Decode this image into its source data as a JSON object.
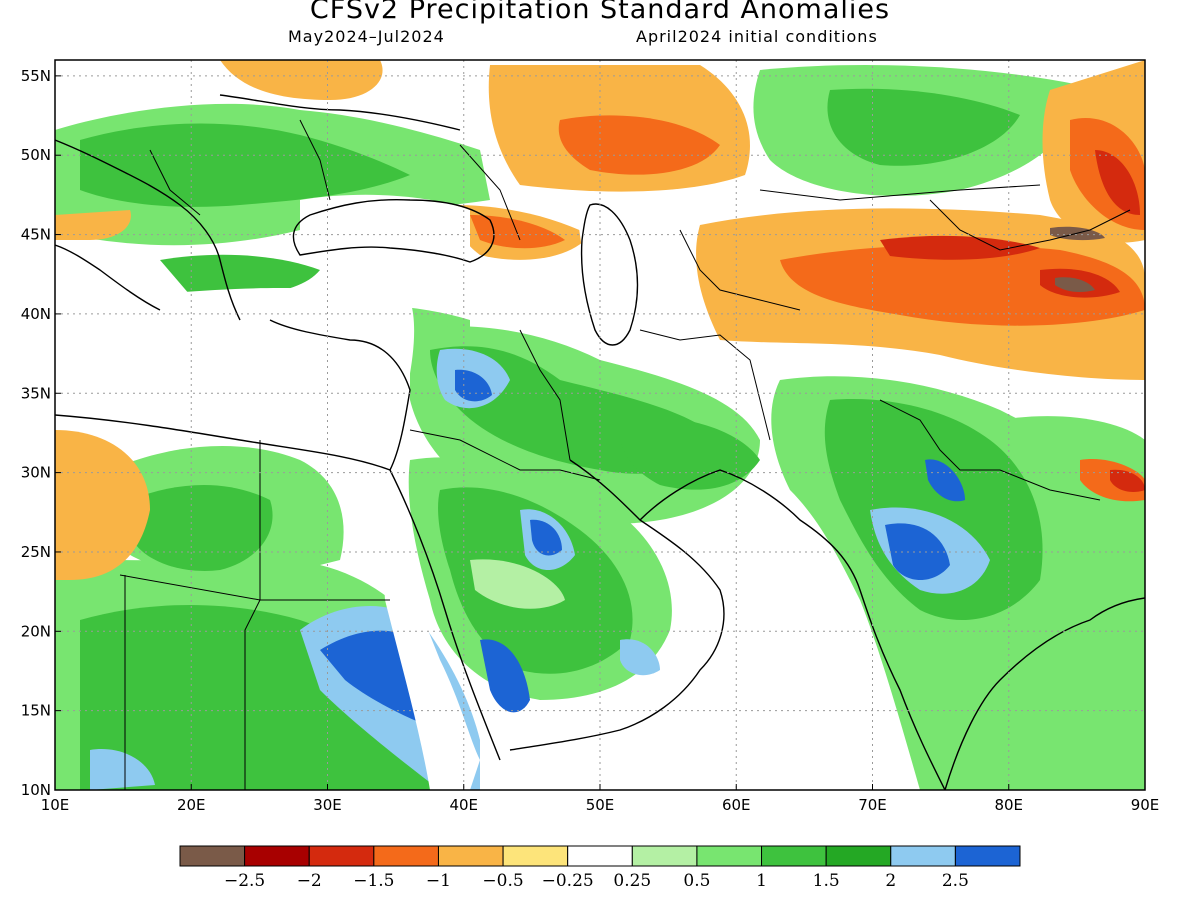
{
  "title": "CFSv2 Precipitation Standard Anomalies",
  "subtitle_left": "May2024–Jul2024",
  "subtitle_right": "April2024 initial conditions",
  "map": {
    "lon_range": [
      10,
      90
    ],
    "lat_range": [
      10,
      56
    ],
    "lon_ticks": [
      "10E",
      "20E",
      "30E",
      "40E",
      "50E",
      "60E",
      "70E",
      "80E",
      "90E"
    ],
    "lat_ticks": [
      "10N",
      "15N",
      "20N",
      "25N",
      "30N",
      "35N",
      "40N",
      "45N",
      "50N",
      "55N"
    ],
    "grid": true
  },
  "colorbar": {
    "colors": [
      "#7a5a48",
      "#a80000",
      "#d42a0e",
      "#f46a1a",
      "#f9b446",
      "#fde47a",
      "#ffffff",
      "#b4f0a4",
      "#78e570",
      "#3ec23e",
      "#24a824",
      "#8ecaf0",
      "#1c64d4"
    ],
    "labels": [
      "−2.5",
      "−2",
      "−1.5",
      "−1",
      "−0.5",
      "−0.25",
      "0.25",
      "0.5",
      "1",
      "1.5",
      "2",
      "2.5"
    ]
  }
}
